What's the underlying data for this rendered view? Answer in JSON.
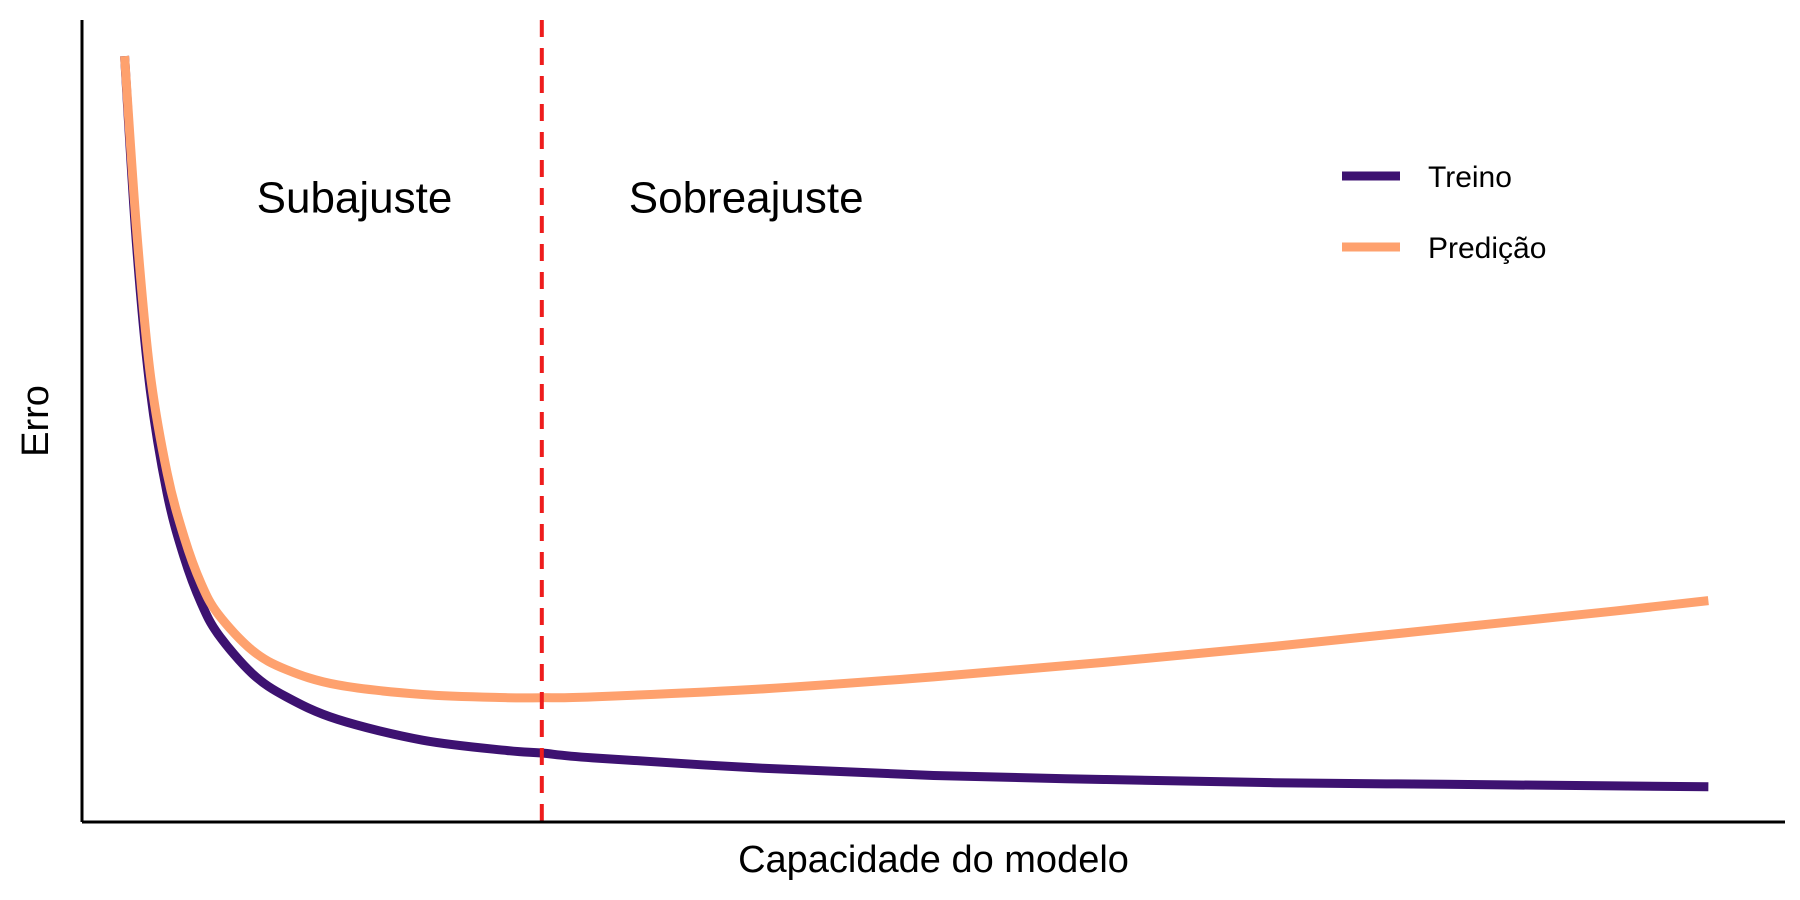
{
  "chart_data": {
    "type": "line",
    "title": "",
    "xlabel": "Capacidade do modelo",
    "ylabel": "Erro",
    "xlim": [
      0,
      100
    ],
    "ylim": [
      0,
      100
    ],
    "x_ticks": [],
    "y_ticks": [],
    "grid": false,
    "legend_position": "top-right",
    "vline": {
      "x": 27,
      "color": "#EE1C1C",
      "style": "dashed"
    },
    "annotations": [
      {
        "text": "Subajuste",
        "x": 16,
        "y": 76
      },
      {
        "text": "Sobreajuste",
        "x": 39,
        "y": 76
      }
    ],
    "series": [
      {
        "name": "Treino",
        "color": "#3D1271",
        "x": [
          2.5,
          3.2,
          4,
          5,
          6,
          7,
          8,
          10,
          12,
          15,
          20,
          25,
          27,
          30,
          40,
          50,
          60,
          70,
          80,
          90,
          95.5
        ],
        "y": [
          95.5,
          72,
          54,
          41,
          33,
          27.3,
          23.4,
          18.5,
          15.6,
          12.8,
          10.2,
          8.9,
          8.6,
          8.0,
          6.7,
          5.8,
          5.3,
          4.9,
          4.7,
          4.5,
          4.4
        ]
      },
      {
        "name": "Predição",
        "color": "#FEA16E",
        "x": [
          2.5,
          3.2,
          4,
          5,
          6,
          7,
          8,
          10,
          12,
          15,
          20,
          25,
          27,
          30,
          40,
          50,
          60,
          70,
          80,
          90,
          95.5
        ],
        "y": [
          95.5,
          74,
          56,
          43.5,
          35.5,
          29.7,
          25.9,
          21.4,
          19.0,
          17.1,
          15.9,
          15.5,
          15.5,
          15.6,
          16.6,
          18.1,
          19.9,
          21.9,
          24.1,
          26.3,
          27.6
        ]
      }
    ]
  }
}
